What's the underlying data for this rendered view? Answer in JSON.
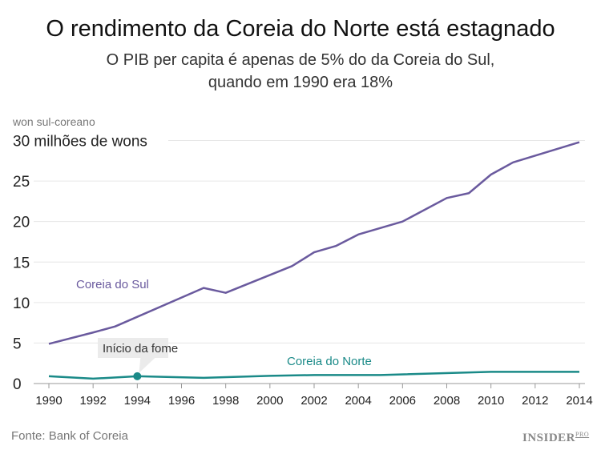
{
  "title": "O rendimento da Coreia do Norte está estagnado",
  "subtitle_lines": [
    "O PIB per capita é apenas de 5% do da Coreia do Sul,",
    "quando em 1990 era 18%"
  ],
  "source": "Fonte: Bank of Coreia",
  "logo": {
    "main": "INSIDER",
    "sup": "PRO"
  },
  "chart_data": {
    "type": "line",
    "ylabel": "won sul-coreano",
    "top_tick_label": "30 milhões de wons",
    "yticks": [
      0,
      5,
      10,
      15,
      20,
      25,
      30
    ],
    "ytick_labels": [
      "0",
      "5",
      "10",
      "15",
      "20",
      "25",
      "30"
    ],
    "xticks": [
      1990,
      1992,
      1994,
      1996,
      1998,
      2000,
      2002,
      2004,
      2006,
      2008,
      2010,
      2012,
      2014
    ],
    "xlim": [
      1990,
      2014
    ],
    "ylim": [
      0,
      30
    ],
    "grid": true,
    "series": [
      {
        "name": "Coreia do Sul",
        "color": "#6a5a9e",
        "x": [
          1990,
          1992,
          1993,
          1997,
          1998,
          2001,
          2002,
          2003,
          2004,
          2006,
          2008,
          2009,
          2010,
          2011,
          2014
        ],
        "y": [
          4.9,
          6.3,
          7.05,
          11.8,
          11.2,
          14.5,
          16.2,
          17.0,
          18.4,
          20.0,
          22.9,
          23.5,
          25.8,
          27.3,
          29.8
        ]
      },
      {
        "name": "Coreia do Norte",
        "color": "#1a8a88",
        "x": [
          1990,
          1992,
          1994,
          1997,
          2000,
          2002,
          2005,
          2010,
          2014
        ],
        "y": [
          0.9,
          0.6,
          0.9,
          0.7,
          0.95,
          1.05,
          1.05,
          1.45,
          1.45
        ]
      }
    ],
    "annotation": {
      "text": "Início da fome",
      "x": 1994,
      "y": 0.9
    }
  }
}
